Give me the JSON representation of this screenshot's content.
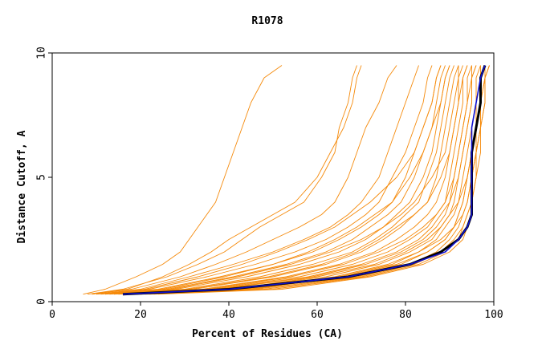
{
  "chart_data": {
    "type": "line",
    "title": "R1078",
    "xlabel": "Percent of Residues (CA)",
    "ylabel": "Distance Cutoff, A",
    "xlim": [
      0,
      100
    ],
    "ylim": [
      0,
      10
    ],
    "xticks": [
      "0",
      "20",
      "40",
      "60",
      "80",
      "100"
    ],
    "yticks": [
      "0",
      "5",
      "10"
    ],
    "grid": false,
    "legend": "none",
    "colors": {
      "models": "#f58a0b",
      "highlight_dark": "#000000",
      "highlight_blue": "#1010d0",
      "frame": "#000000"
    },
    "y_common": [
      0.3,
      0.5,
      1.0,
      1.5,
      2.0,
      2.5,
      3.0,
      3.5,
      4.0,
      5.0,
      6.0,
      7.0,
      8.0,
      9.0,
      9.5
    ],
    "series": [
      {
        "group": "model",
        "x": [
          7,
          12,
          19,
          25,
          29,
          31,
          33,
          35,
          37,
          39,
          41,
          43,
          45,
          48,
          52
        ]
      },
      {
        "group": "model",
        "x": [
          8,
          16,
          26,
          33,
          39,
          43,
          47,
          52,
          57,
          61,
          64,
          65,
          67,
          68,
          69
        ]
      },
      {
        "group": "model",
        "x": [
          9,
          18,
          29,
          37,
          44,
          50,
          56,
          61,
          64,
          67,
          69,
          71,
          74,
          76,
          78
        ]
      },
      {
        "group": "model",
        "x": [
          10,
          20,
          31,
          41,
          50,
          57,
          63,
          67,
          70,
          74,
          76,
          78,
          80,
          82,
          83
        ]
      },
      {
        "group": "model",
        "x": [
          10,
          22,
          35,
          46,
          55,
          62,
          67,
          71,
          74,
          77,
          80,
          82,
          84,
          85,
          86
        ]
      },
      {
        "group": "model",
        "x": [
          11,
          24,
          38,
          50,
          59,
          65,
          70,
          74,
          77,
          80,
          82,
          84,
          86,
          87,
          88
        ]
      },
      {
        "group": "model",
        "x": [
          12,
          26,
          41,
          53,
          62,
          68,
          72,
          76,
          79,
          82,
          84,
          86,
          87,
          88,
          89
        ]
      },
      {
        "group": "model",
        "x": [
          13,
          28,
          44,
          56,
          65,
          71,
          75,
          78,
          81,
          84,
          86,
          87,
          88,
          89,
          90
        ]
      },
      {
        "group": "model",
        "x": [
          14,
          30,
          47,
          59,
          68,
          73,
          77,
          80,
          83,
          85,
          87,
          88,
          89,
          90,
          91
        ]
      },
      {
        "group": "model",
        "x": [
          15,
          32,
          50,
          62,
          70,
          75,
          79,
          82,
          85,
          87,
          88,
          89,
          90,
          91,
          92
        ]
      },
      {
        "group": "model",
        "x": [
          15,
          34,
          53,
          65,
          73,
          78,
          82,
          85,
          87,
          89,
          90,
          91,
          92,
          92,
          93
        ]
      },
      {
        "group": "model",
        "x": [
          16,
          36,
          56,
          68,
          76,
          81,
          85,
          87,
          89,
          90,
          91,
          92,
          93,
          93,
          94
        ]
      },
      {
        "group": "model",
        "x": [
          17,
          38,
          59,
          71,
          79,
          84,
          87,
          89,
          90,
          91,
          92,
          93,
          94,
          94,
          95
        ]
      },
      {
        "group": "model",
        "x": [
          18,
          40,
          62,
          74,
          81,
          86,
          88,
          90,
          91,
          92,
          93,
          94,
          95,
          95,
          96
        ]
      },
      {
        "group": "model",
        "x": [
          19,
          42,
          65,
          77,
          83,
          87,
          89,
          91,
          92,
          93,
          94,
          95,
          96,
          96,
          97
        ]
      },
      {
        "group": "model",
        "x": [
          20,
          44,
          67,
          79,
          85,
          89,
          91,
          92,
          93,
          94,
          95,
          96,
          96,
          97,
          98
        ]
      },
      {
        "group": "model",
        "x": [
          21,
          46,
          69,
          81,
          87,
          90,
          92,
          93,
          94,
          95,
          96,
          97,
          97,
          98,
          98
        ]
      },
      {
        "group": "model",
        "x": [
          22,
          48,
          70,
          82,
          88,
          91,
          93,
          94,
          95,
          95,
          96,
          97,
          97,
          98,
          99
        ]
      },
      {
        "group": "model",
        "x": [
          23,
          50,
          71,
          83,
          89,
          92,
          93,
          94,
          95,
          96,
          96,
          97,
          98,
          98,
          99
        ]
      },
      {
        "group": "model",
        "x": [
          24,
          52,
          72,
          84,
          90,
          93,
          94,
          95,
          95,
          96,
          97,
          97,
          98,
          98,
          99
        ]
      },
      {
        "group": "model",
        "x": [
          9,
          17,
          25,
          31,
          36,
          40,
          45,
          50,
          55,
          60,
          63,
          66,
          68,
          69,
          70
        ]
      },
      {
        "group": "model",
        "x": [
          11,
          21,
          33,
          43,
          51,
          58,
          64,
          68,
          72,
          78,
          82,
          84,
          86,
          87,
          88
        ]
      },
      {
        "group": "model",
        "x": [
          13,
          27,
          42,
          54,
          63,
          70,
          75,
          79,
          82,
          86,
          89,
          90,
          91,
          92,
          92
        ]
      },
      {
        "group": "model",
        "x": [
          16,
          35,
          54,
          66,
          74,
          80,
          84,
          87,
          89,
          91,
          92,
          93,
          94,
          95,
          95
        ]
      },
      {
        "group": "model",
        "x": [
          19,
          43,
          64,
          76,
          83,
          88,
          91,
          93,
          94,
          95,
          96,
          96,
          97,
          97,
          98
        ]
      },
      {
        "group": "model",
        "x": [
          18,
          41,
          60,
          73,
          80,
          85,
          88,
          90,
          92,
          94,
          95,
          96,
          96,
          97,
          97
        ]
      },
      {
        "group": "model",
        "x": [
          14,
          31,
          49,
          61,
          69,
          74,
          78,
          82,
          85,
          88,
          90,
          91,
          92,
          93,
          94
        ]
      },
      {
        "group": "model",
        "x": [
          12,
          25,
          39,
          50,
          58,
          64,
          69,
          73,
          77,
          81,
          84,
          86,
          88,
          89,
          90
        ]
      },
      {
        "group": "model",
        "x": [
          17,
          37,
          58,
          70,
          78,
          83,
          86,
          88,
          90,
          92,
          93,
          94,
          95,
          95,
          96
        ]
      },
      {
        "group": "model",
        "x": [
          20,
          45,
          66,
          78,
          85,
          89,
          91,
          92,
          93,
          94,
          95,
          96,
          97,
          97,
          98
        ]
      },
      {
        "group": "highlight_dark",
        "x": [
          16,
          40,
          67,
          81,
          88,
          92,
          94,
          95,
          95,
          95,
          95,
          96,
          97,
          97,
          98
        ]
      },
      {
        "group": "highlight_blue",
        "x": [
          16,
          40,
          67,
          81,
          89,
          92,
          94,
          95,
          95,
          95,
          95,
          95,
          96,
          97,
          98
        ]
      }
    ]
  }
}
